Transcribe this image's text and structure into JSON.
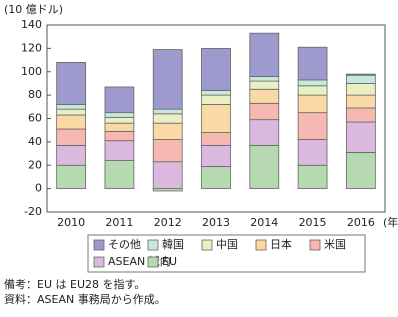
{
  "chart_data": {
    "type": "stacked-bar",
    "y_label": "(10 億ドル)",
    "x_unit": "(年)",
    "categories": [
      "2010",
      "2011",
      "2012",
      "2013",
      "2014",
      "2015",
      "2016"
    ],
    "series": [
      {
        "name": "その他",
        "color": "#9e9acd",
        "values": [
          36,
          22,
          51,
          36,
          37,
          28,
          1
        ]
      },
      {
        "name": "韓国",
        "color": "#c9e8dc",
        "values": [
          4,
          4,
          4,
          4,
          4,
          5,
          7
        ]
      },
      {
        "name": "中国",
        "color": "#e8efc3",
        "values": [
          5,
          5,
          8,
          8,
          7,
          8,
          10
        ]
      },
      {
        "name": "日本",
        "color": "#fbd9a6",
        "values": [
          12,
          7,
          14,
          24,
          12,
          15,
          11
        ]
      },
      {
        "name": "米国",
        "color": "#f5b9b2",
        "values": [
          14,
          8,
          19,
          11,
          14,
          23,
          12
        ]
      },
      {
        "name": "ASEAN 域内",
        "color": "#dbb9de",
        "values": [
          17,
          17,
          23,
          18,
          22,
          22,
          26
        ]
      },
      {
        "name": "EU",
        "color": "#b7d9b1",
        "values": [
          20,
          24,
          -2,
          19,
          37,
          20,
          31
        ]
      }
    ],
    "ylim": [
      -20,
      140
    ],
    "yticks": [
      -20,
      0,
      20,
      40,
      60,
      80,
      100,
      120,
      140
    ],
    "grid": false,
    "notes": [
      "備考：EU は EU28 を指す。",
      "資料：ASEAN 事務局から作成。"
    ]
  }
}
